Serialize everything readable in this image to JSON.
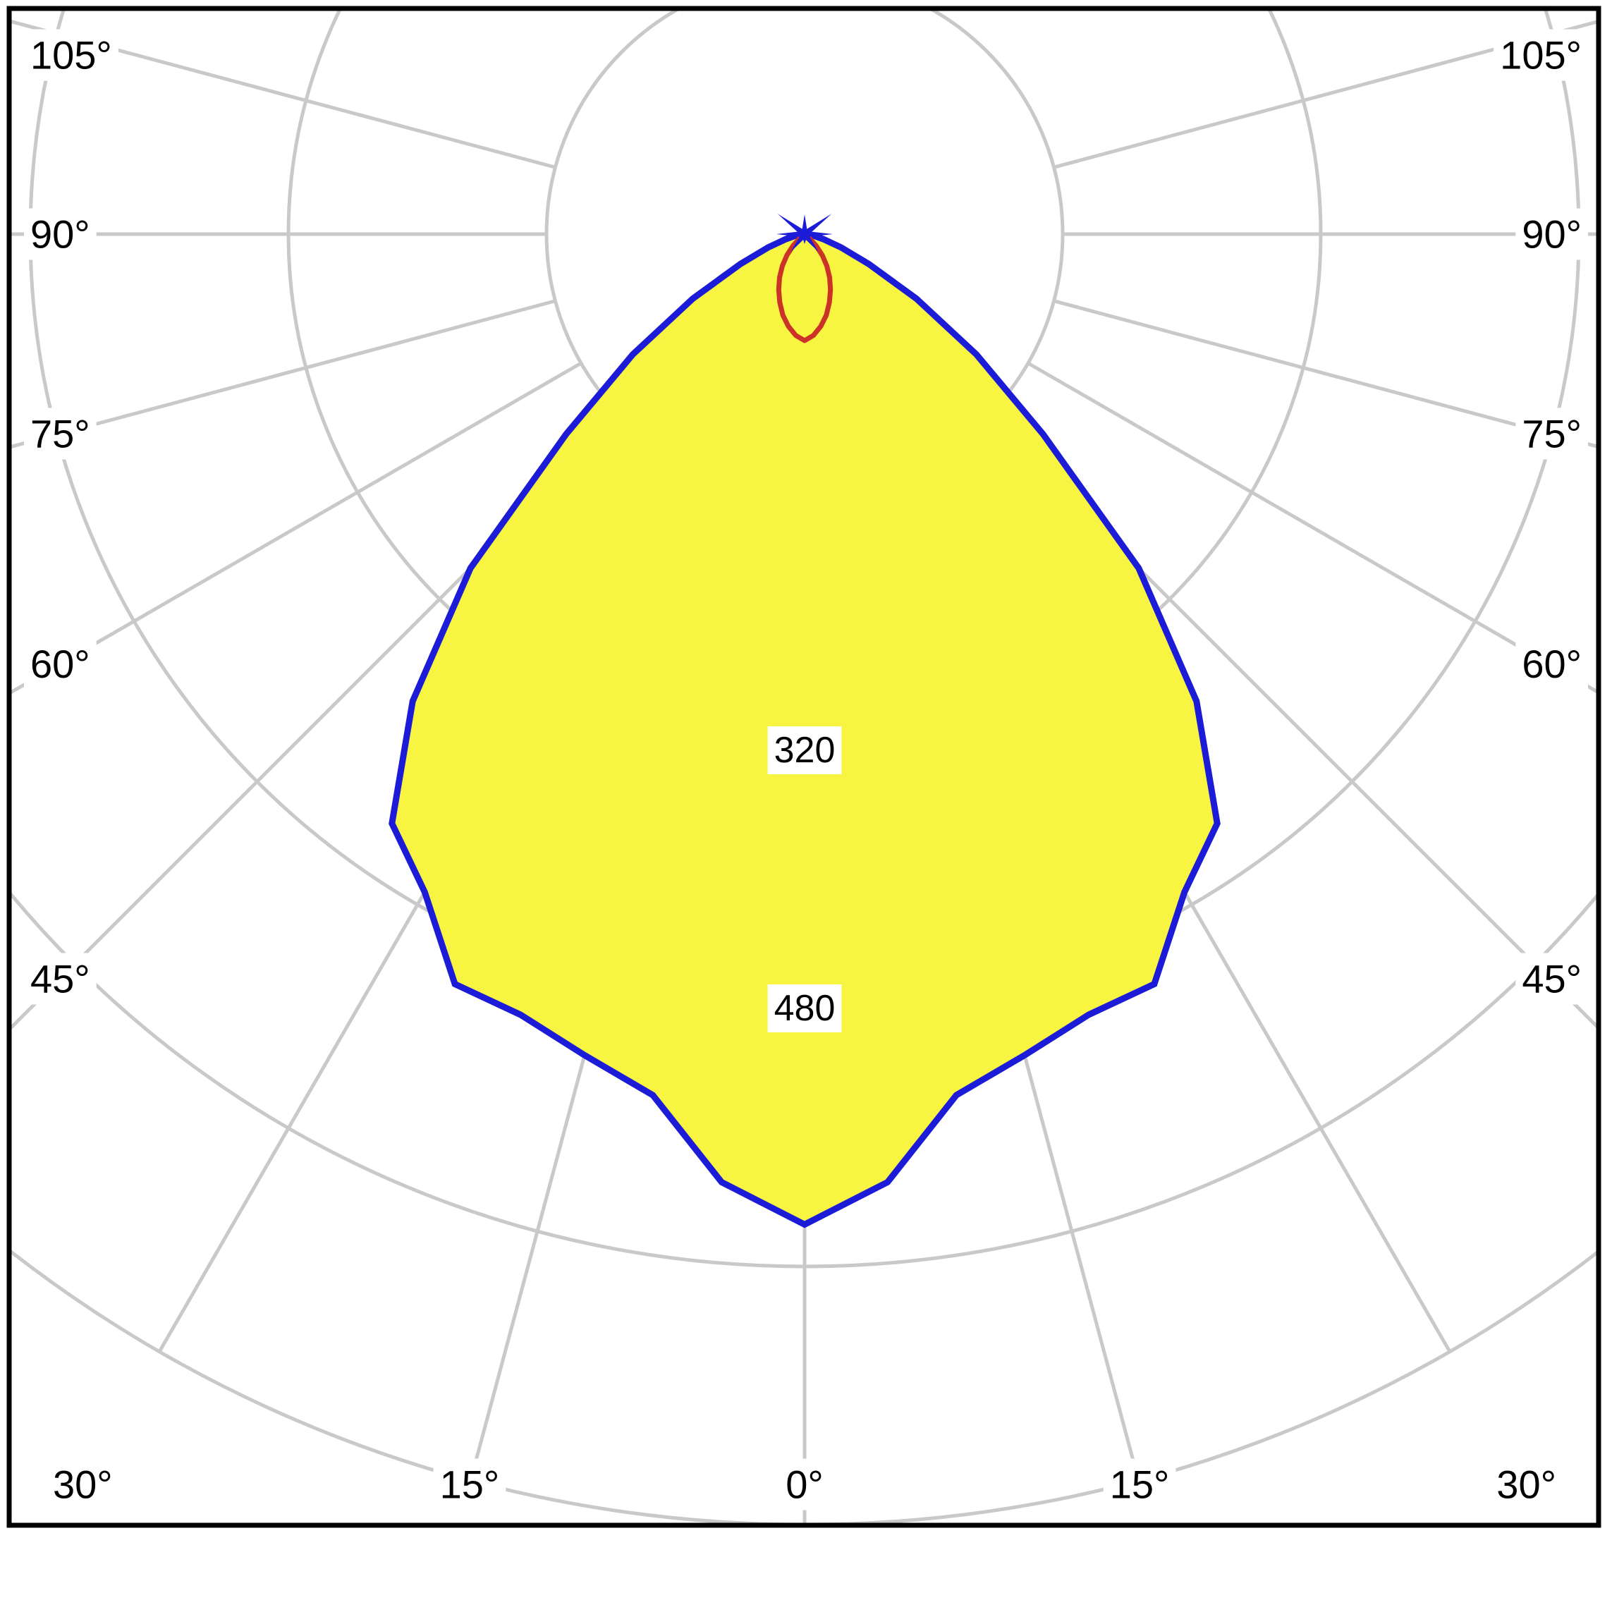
{
  "chart_data": {
    "type": "polar",
    "subtype": "photometric-intensity-distribution",
    "title": "",
    "background_color": "#ffffff",
    "frame_color": "#000000",
    "grid": {
      "color": "#c9c9c9",
      "ring_step": 160,
      "ring_values": [
        160,
        320,
        480,
        640,
        800
      ],
      "ring_labels": [
        {
          "value": 320,
          "label": "320"
        },
        {
          "value": 480,
          "label": "480"
        }
      ],
      "angle_step_deg": 15,
      "max_angle_deg": 105,
      "bottom_angle_labels": [
        {
          "deg": 0,
          "label": "0°"
        },
        {
          "deg": 15,
          "label": "15°"
        },
        {
          "deg": 30,
          "label": "30°"
        }
      ],
      "side_angle_labels": [
        {
          "deg": 45,
          "label": "45°"
        },
        {
          "deg": 60,
          "label": "60°"
        },
        {
          "deg": 75,
          "label": "75°"
        },
        {
          "deg": 90,
          "label": "90°"
        },
        {
          "deg": 105,
          "label": "105°"
        }
      ]
    },
    "series": [
      {
        "name": "main-plane-curve",
        "color": "#1c1cd8",
        "fill": "#f8f542",
        "symmetric": true,
        "angles_deg": [
          0,
          5,
          10,
          15,
          20,
          25,
          30,
          35,
          40,
          45,
          50,
          55,
          60,
          65,
          70,
          75,
          80,
          85,
          90
        ],
        "values": [
          614,
          590,
          542,
          527,
          515,
          513,
          471,
          446,
          378,
          293,
          193,
          130,
          80,
          44,
          24,
          12,
          6,
          2,
          0
        ]
      },
      {
        "name": "transverse-plane-curve",
        "color": "#cc3328",
        "fill": "none",
        "symmetric": true,
        "angles_deg": [
          0,
          5,
          10,
          15,
          20,
          25,
          30,
          35,
          40,
          45,
          50,
          55
        ],
        "values": [
          66,
          63,
          58,
          52,
          45,
          38,
          31,
          24,
          17,
          10,
          4,
          0
        ]
      }
    ],
    "marker": {
      "name": "luminaire-position-star",
      "color": "#1c1cd8"
    }
  }
}
